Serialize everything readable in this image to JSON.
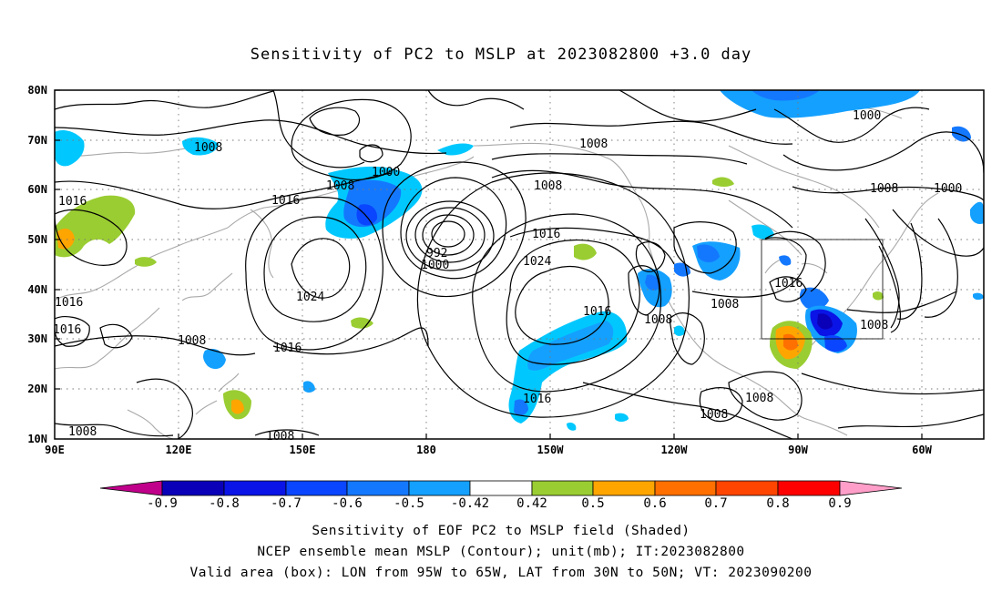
{
  "title": "Sensitivity of PC2 to MSLP at 2023082800 +3.0 day",
  "lat_labels": [
    "80N",
    "70N",
    "60N",
    "50N",
    "40N",
    "30N",
    "20N",
    "10N"
  ],
  "lon_labels": [
    "90E",
    "120E",
    "150E",
    "180",
    "150W",
    "120W",
    "90W",
    "60W"
  ],
  "contour_labels": [
    "1008",
    "1000",
    "1008",
    "1016",
    "1008",
    "1008",
    "1000",
    "1000",
    "1008",
    "1016",
    "992",
    "1000",
    "1024",
    "1016",
    "1024",
    "1008",
    "1016",
    "1016",
    "1008",
    "1016",
    "1008",
    "1008",
    "1008",
    "1008",
    "1008",
    "1016",
    "1016",
    "1008",
    "1016"
  ],
  "colorbar": {
    "labels": [
      "-0.9",
      "-0.8",
      "-0.7",
      "-0.6",
      "-0.5",
      "-0.42",
      "0.42",
      "0.5",
      "0.6",
      "0.7",
      "0.8",
      "0.9"
    ],
    "colors": [
      "#c0008a",
      "#0a00b8",
      "#0a14e6",
      "#0a46ff",
      "#1478ff",
      "#14a0ff",
      "#00c8ff",
      "#ffffff",
      "#9acd32",
      "#ffa500",
      "#ff7000",
      "#ff4500",
      "#ff0000",
      "#ff9ec8"
    ]
  },
  "captions": [
    "Sensitivity of EOF PC2 to MSLP field (Shaded)",
    "NCEP ensemble mean MSLP (Contour); unit(mb); IT:2023082800",
    "Valid area (box): LON from 95W to 65W, LAT from 30N to 50N; VT: 2023090200"
  ]
}
